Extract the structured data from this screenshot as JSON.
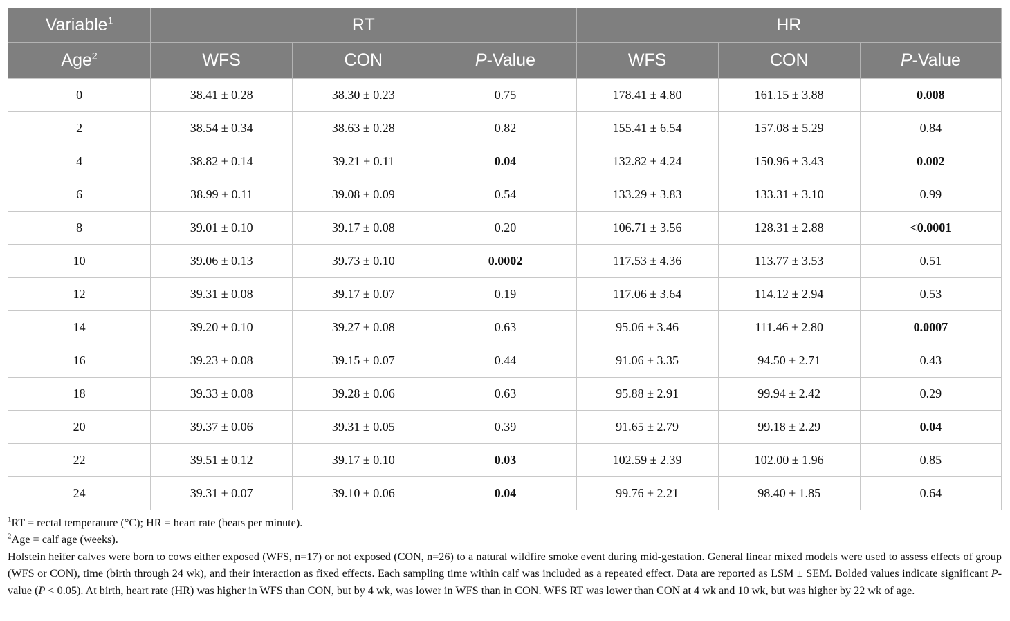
{
  "header": {
    "variable_label": "Variable",
    "variable_sup": "1",
    "rt_label": "RT",
    "hr_label": "HR",
    "age_label": "Age",
    "age_sup": "2",
    "wfs": "WFS",
    "con": "CON",
    "p_italic": "P",
    "p_rest": "-Value"
  },
  "rows": [
    {
      "age": "0",
      "rt_wfs": "38.41 ± 0.28",
      "rt_con": "38.30 ± 0.23",
      "rt_p": "0.75",
      "rt_p_bold": false,
      "hr_wfs": "178.41 ± 4.80",
      "hr_con": "161.15 ± 3.88",
      "hr_p": "0.008",
      "hr_p_bold": true
    },
    {
      "age": "2",
      "rt_wfs": "38.54 ± 0.34",
      "rt_con": "38.63 ± 0.28",
      "rt_p": "0.82",
      "rt_p_bold": false,
      "hr_wfs": "155.41 ± 6.54",
      "hr_con": "157.08 ± 5.29",
      "hr_p": "0.84",
      "hr_p_bold": false
    },
    {
      "age": "4",
      "rt_wfs": "38.82 ± 0.14",
      "rt_con": "39.21 ± 0.11",
      "rt_p": "0.04",
      "rt_p_bold": true,
      "hr_wfs": "132.82 ± 4.24",
      "hr_con": "150.96 ± 3.43",
      "hr_p": "0.002",
      "hr_p_bold": true
    },
    {
      "age": "6",
      "rt_wfs": "38.99 ± 0.11",
      "rt_con": "39.08 ± 0.09",
      "rt_p": "0.54",
      "rt_p_bold": false,
      "hr_wfs": "133.29 ± 3.83",
      "hr_con": "133.31 ± 3.10",
      "hr_p": "0.99",
      "hr_p_bold": false
    },
    {
      "age": "8",
      "rt_wfs": "39.01 ± 0.10",
      "rt_con": "39.17 ± 0.08",
      "rt_p": "0.20",
      "rt_p_bold": false,
      "hr_wfs": "106.71 ± 3.56",
      "hr_con": "128.31 ± 2.88",
      "hr_p": "<0.0001",
      "hr_p_bold": true
    },
    {
      "age": "10",
      "rt_wfs": "39.06 ± 0.13",
      "rt_con": "39.73 ± 0.10",
      "rt_p": "0.0002",
      "rt_p_bold": true,
      "hr_wfs": "117.53 ± 4.36",
      "hr_con": "113.77 ± 3.53",
      "hr_p": "0.51",
      "hr_p_bold": false
    },
    {
      "age": "12",
      "rt_wfs": "39.31 ± 0.08",
      "rt_con": "39.17 ± 0.07",
      "rt_p": "0.19",
      "rt_p_bold": false,
      "hr_wfs": "117.06 ± 3.64",
      "hr_con": "114.12 ± 2.94",
      "hr_p": "0.53",
      "hr_p_bold": false
    },
    {
      "age": "14",
      "rt_wfs": "39.20 ± 0.10",
      "rt_con": "39.27 ± 0.08",
      "rt_p": "0.63",
      "rt_p_bold": false,
      "hr_wfs": "95.06 ± 3.46",
      "hr_con": "111.46 ± 2.80",
      "hr_p": "0.0007",
      "hr_p_bold": true
    },
    {
      "age": "16",
      "rt_wfs": "39.23 ± 0.08",
      "rt_con": "39.15 ± 0.07",
      "rt_p": "0.44",
      "rt_p_bold": false,
      "hr_wfs": "91.06 ± 3.35",
      "hr_con": "94.50 ± 2.71",
      "hr_p": "0.43",
      "hr_p_bold": false
    },
    {
      "age": "18",
      "rt_wfs": "39.33 ± 0.08",
      "rt_con": "39.28 ± 0.06",
      "rt_p": "0.63",
      "rt_p_bold": false,
      "hr_wfs": "95.88 ± 2.91",
      "hr_con": "99.94 ± 2.42",
      "hr_p": "0.29",
      "hr_p_bold": false
    },
    {
      "age": "20",
      "rt_wfs": "39.37 ± 0.06",
      "rt_con": "39.31 ± 0.05",
      "rt_p": "0.39",
      "rt_p_bold": false,
      "hr_wfs": "91.65 ± 2.79",
      "hr_con": "99.18 ± 2.29",
      "hr_p": "0.04",
      "hr_p_bold": true
    },
    {
      "age": "22",
      "rt_wfs": "39.51 ± 0.12",
      "rt_con": "39.17 ± 0.10",
      "rt_p": "0.03",
      "rt_p_bold": true,
      "hr_wfs": "102.59 ± 2.39",
      "hr_con": "102.00 ± 1.96",
      "hr_p": "0.85",
      "hr_p_bold": false
    },
    {
      "age": "24",
      "rt_wfs": "39.31 ± 0.07",
      "rt_con": "39.10 ± 0.06",
      "rt_p": "0.04",
      "rt_p_bold": true,
      "hr_wfs": "99.76 ± 2.21",
      "hr_con": "98.40 ± 1.85",
      "hr_p": "0.64",
      "hr_p_bold": false
    }
  ],
  "footnotes": {
    "fn1_sup": "1",
    "fn1_text": "RT = rectal temperature (°C); HR = heart rate (beats per minute).",
    "fn2_sup": "2",
    "fn2_text": "Age = calf age (weeks).",
    "desc_part1": "Holstein heifer calves were born to cows either exposed (WFS, n=17) or not exposed (CON, n=26) to a natural wildfire smoke event during mid-gestation. General linear mixed models were used to assess effects of group (WFS or CON), time (birth through 24 wk), and their interaction as fixed effects. Each sampling time within calf was included as a repeated effect. Data are reported as LSM ± SEM. Bolded values indicate significant ",
    "desc_p1": "P",
    "desc_part2": "-value (",
    "desc_p2": "P",
    "desc_part3": " < 0.05). At birth, heart rate (HR) was higher in WFS than CON, but by 4 wk, was lower in WFS than in CON. WFS RT was lower than CON at 4 wk and 10 wk, but was higher by 22 wk of age."
  }
}
